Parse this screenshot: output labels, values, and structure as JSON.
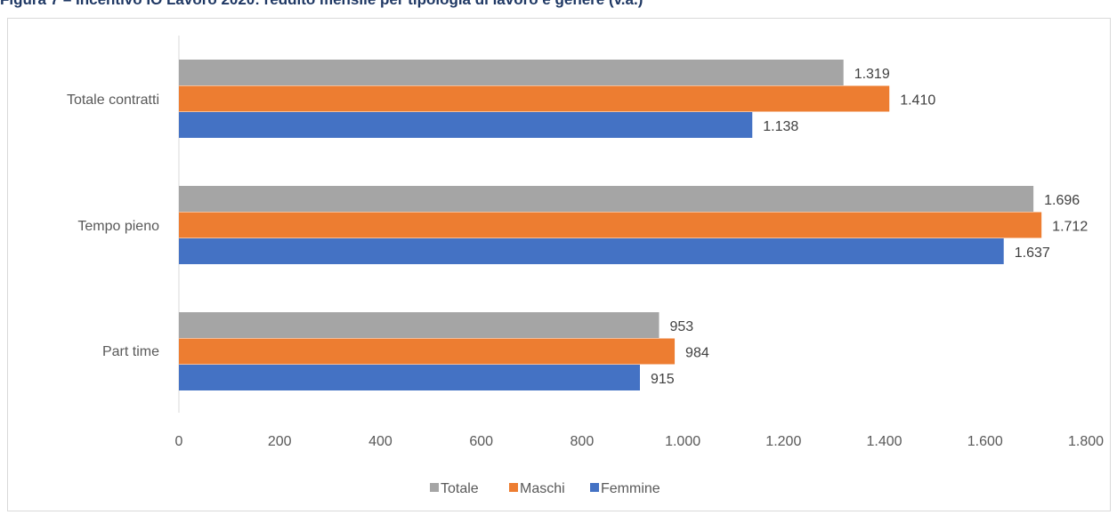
{
  "title": "Figura 7 – Incentivo IO Lavoro 2020: reddito mensile per tipologia di lavoro e genere (v.a.)",
  "chart_data": {
    "type": "bar",
    "orientation": "horizontal",
    "categories": [
      "Totale contratti",
      "Tempo pieno",
      "Part time"
    ],
    "series": [
      {
        "name": "Totale",
        "color": "#a5a5a5",
        "values": [
          1319,
          1696,
          953
        ],
        "labels": [
          "1.319",
          "1.696",
          "953"
        ]
      },
      {
        "name": "Maschi",
        "color": "#ed7d31",
        "values": [
          1410,
          1712,
          984
        ],
        "labels": [
          "1.410",
          "1.712",
          "984"
        ]
      },
      {
        "name": "Femmine",
        "color": "#4472c4",
        "values": [
          1138,
          1637,
          915
        ],
        "labels": [
          "1.138",
          "1.637",
          "915"
        ]
      }
    ],
    "xlim": [
      0,
      1800
    ],
    "xticks": [
      0,
      200,
      400,
      600,
      800,
      1000,
      1200,
      1400,
      1600,
      1800
    ],
    "xtick_labels": [
      "0",
      "200",
      "400",
      "600",
      "800",
      "1.000",
      "1.200",
      "1.400",
      "1.600",
      "1.800"
    ],
    "grid": false,
    "legend": "bottom"
  }
}
